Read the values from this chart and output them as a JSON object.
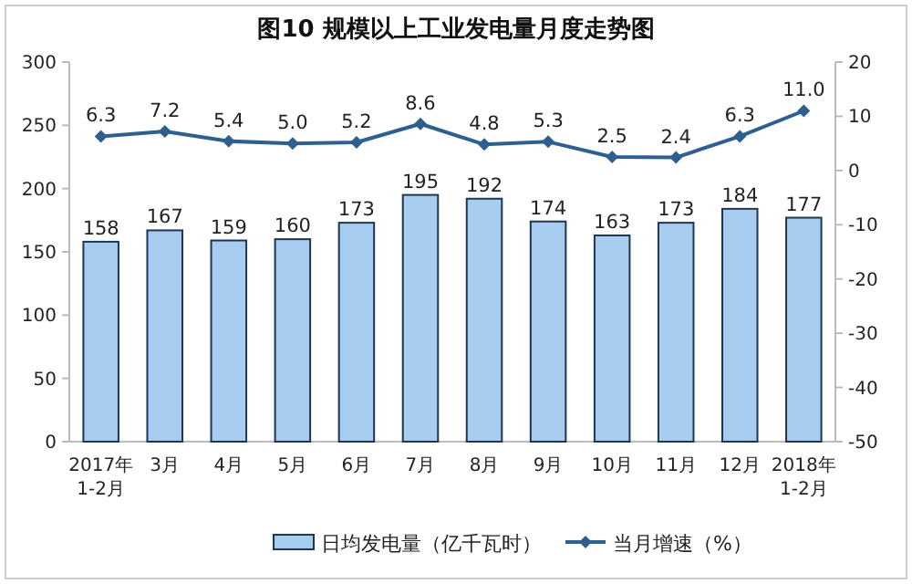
{
  "chart_data": {
    "type": "bar",
    "title": "图10 规模以上工业发电量月度走势图",
    "categories": [
      "2017年\n1-2月",
      "3月",
      "4月",
      "5月",
      "6月",
      "7月",
      "8月",
      "9月",
      "10月",
      "11月",
      "12月",
      "2018年\n1-2月"
    ],
    "series": [
      {
        "name": "日均发电量（亿千瓦时）",
        "color": "#a6cdf0",
        "values": [
          158,
          167,
          159,
          160,
          173,
          195,
          192,
          174,
          163,
          173,
          184,
          177
        ]
      },
      {
        "name": "当月增速（%）",
        "type": "line",
        "axis": "y2",
        "color": "#2e5f8f",
        "values": [
          6.3,
          7.2,
          5.4,
          5.0,
          5.2,
          8.6,
          4.8,
          5.3,
          2.5,
          2.4,
          6.3,
          11.0
        ],
        "value_labels": [
          "6.3",
          "7.2",
          "5.4",
          "5.0",
          "5.2",
          "8.6",
          "4.8",
          "5.3",
          "2.5",
          "2.4",
          "6.3",
          "11.0"
        ]
      }
    ],
    "ylim": [
      0,
      300
    ],
    "yticks": [
      0,
      50,
      100,
      150,
      200,
      250,
      300
    ],
    "y2lim": [
      -50,
      20
    ],
    "y2ticks": [
      -50,
      -40,
      -30,
      -20,
      -10,
      0,
      10,
      20
    ],
    "data_labels": true,
    "legend": "bottom",
    "marker": "diamond",
    "grid": false
  }
}
